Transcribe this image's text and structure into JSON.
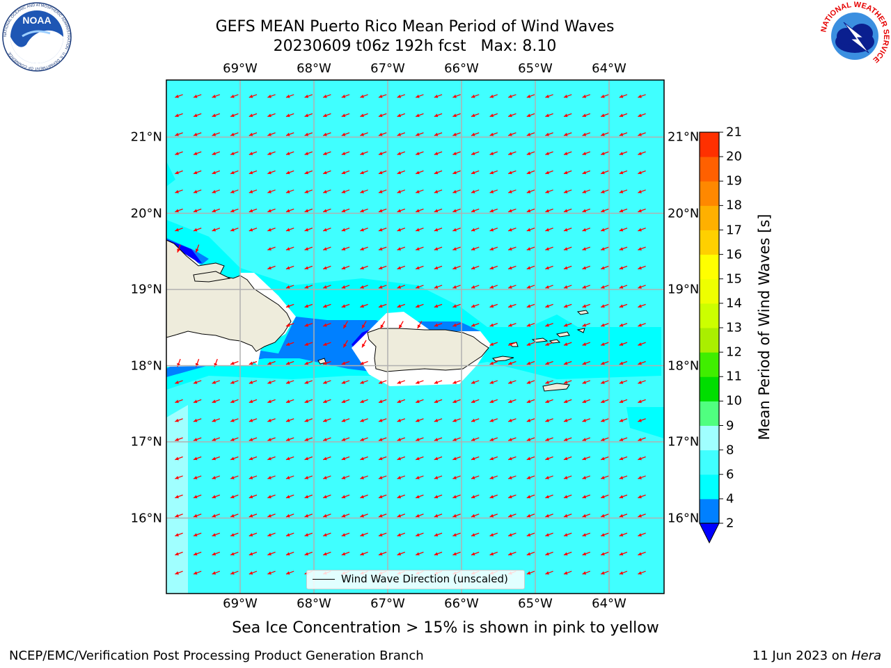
{
  "header": {
    "title_line1": "GEFS MEAN Puerto Rico Mean Period of Wind Waves",
    "title_line2": "20230609 t06z 192h fcst   Max: 8.10"
  },
  "logos": {
    "left": {
      "icon": "noaa-logo",
      "text": "NOAA",
      "ring_text": "NATIONAL OCEANIC AND ATMOSPHERIC ADMINISTRATION · U.S. DEPARTMENT OF COMMERCE"
    },
    "right": {
      "icon": "nws-logo",
      "ring_text": "NATIONAL WEATHER SERVICE"
    }
  },
  "map": {
    "lon_labels": [
      "69°W",
      "68°W",
      "67°W",
      "66°W",
      "65°W",
      "64°W"
    ],
    "lat_labels": [
      "21°N",
      "20°N",
      "19°N",
      "18°N",
      "17°N",
      "16°N"
    ],
    "legend_label": "Wind Wave Direction (unscaled)",
    "colors": {
      "ocean_period_4_6": "#00ffff",
      "ocean_period_6_8": "#40ffff",
      "ocean_period_8_9": "#a0ffff",
      "ocean_period_2_4": "#0080ff",
      "ocean_period_lt_2": "#0000ff",
      "land": "#eeecdc",
      "arrow": "#ff0000",
      "grid": "#b0b0b0"
    }
  },
  "colorbar": {
    "label": "Mean Period of Wind Waves [s]",
    "ticks": [
      "2",
      "4",
      "6",
      "8",
      "9",
      "10",
      "11",
      "12",
      "13",
      "14",
      "15",
      "16",
      "17",
      "18",
      "19",
      "20",
      "21"
    ],
    "bin_colors": [
      "#0080ff",
      "#00ffff",
      "#40ffff",
      "#a0ffff",
      "#50ff80",
      "#00dd00",
      "#40ee00",
      "#aaee00",
      "#ccff00",
      "#eeff00",
      "#ffff00",
      "#ffd000",
      "#ffb000",
      "#ff8800",
      "#ff6000",
      "#ff3000"
    ],
    "under_color": "#0000ff",
    "over_color": "#ff0000"
  },
  "subtitle": "Sea Ice Concentration > 15% is shown in pink to yellow",
  "footer": {
    "left": "NCEP/EMC/Verification Post Processing Product Generation Branch",
    "right_prefix": "11 Jun 2023 on ",
    "right_host": "Hera"
  }
}
